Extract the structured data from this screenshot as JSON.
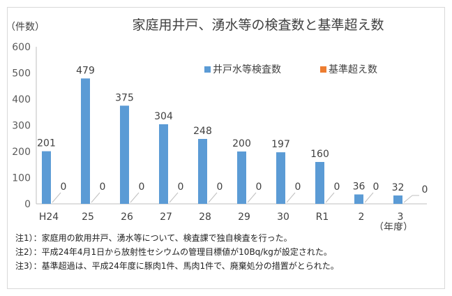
{
  "chart_data": {
    "type": "bar",
    "title": "家庭用井戸、湧水等の検査数と基準超え数",
    "ylabel": "（件数）",
    "xlabel": "（年度）",
    "ylim": [
      0,
      600
    ],
    "yticks": [
      0,
      100,
      200,
      300,
      400,
      500,
      600
    ],
    "grid": false,
    "legend_position": "top-right",
    "categories": [
      "H24",
      "25",
      "26",
      "27",
      "28",
      "29",
      "30",
      "R1",
      "2",
      "3"
    ],
    "series": [
      {
        "name": "井戸水等検査数",
        "color": "#5b9bd5",
        "values": [
          201,
          479,
          375,
          304,
          248,
          200,
          197,
          160,
          36,
          32
        ]
      },
      {
        "name": "基準超え数",
        "color": "#ed7d31",
        "values": [
          0,
          0,
          0,
          0,
          0,
          0,
          0,
          0,
          0,
          0
        ]
      }
    ]
  },
  "notes": [
    "注1）：家庭用の飲用井戸、湧水等について、検査課で独自検査を行った。",
    "注2）：平成24年4月1日から放射性セシウムの管理目標値が10Bq/kgが設定された。",
    "注3）：基準超過は、平成24年度に豚肉1件、馬肉1件で、廃棄処分の措置がとられた。"
  ]
}
